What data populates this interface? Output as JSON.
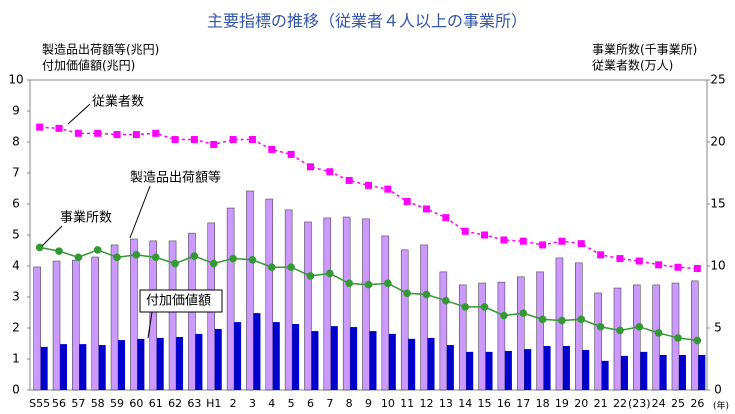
{
  "chart_data": {
    "type": "bar_line",
    "title": "主要指標の推移（従業者４人以上の事業所）",
    "y_label": [
      "製造品出荷額等(兆円)",
      "付加価値額(兆円)"
    ],
    "y2_label": [
      "事業所数(千事業所)",
      "従業者数(万人)"
    ],
    "x_label": "(年)",
    "categories": [
      "S55",
      "56",
      "57",
      "58",
      "59",
      "60",
      "61",
      "62",
      "63",
      "H1",
      "2",
      "3",
      "4",
      "5",
      "6",
      "7",
      "8",
      "9",
      "10",
      "11",
      "12",
      "13",
      "14",
      "15",
      "16",
      "17",
      "18",
      "19",
      "20",
      "21",
      "22",
      "(23)",
      "24",
      "25",
      "26"
    ],
    "ylim": [
      0,
      10
    ],
    "yticks": [
      0,
      1,
      2,
      3,
      4,
      5,
      6,
      7,
      8,
      9,
      10
    ],
    "y2lim": [
      0,
      25
    ],
    "y2ticks": [
      0,
      5,
      10,
      15,
      20,
      25
    ],
    "grid": false,
    "series": [
      {
        "name": "製造品出荷額等",
        "kind": "bar",
        "color": "#cc99ff",
        "values": [
          3.97,
          4.16,
          4.19,
          4.29,
          4.68,
          4.87,
          4.81,
          4.81,
          5.06,
          5.39,
          5.87,
          6.42,
          6.16,
          5.81,
          5.42,
          5.55,
          5.58,
          5.52,
          4.97,
          4.52,
          4.68,
          3.81,
          3.39,
          3.45,
          3.48,
          3.65,
          3.81,
          4.26,
          4.1,
          3.13,
          3.29,
          3.39,
          3.39,
          3.45,
          3.52
        ]
      },
      {
        "name": "付加価値額",
        "kind": "bar",
        "color": "#0000cc",
        "values": [
          1.39,
          1.48,
          1.48,
          1.45,
          1.61,
          1.65,
          1.68,
          1.71,
          1.81,
          1.97,
          2.19,
          2.48,
          2.19,
          2.13,
          1.9,
          2.06,
          2.03,
          1.9,
          1.81,
          1.65,
          1.68,
          1.45,
          1.23,
          1.23,
          1.26,
          1.32,
          1.42,
          1.42,
          1.29,
          0.94,
          1.1,
          1.23,
          1.13,
          1.13,
          1.13
        ]
      },
      {
        "name": "従業者数",
        "kind": "line",
        "axis": "y2",
        "color": "#ff00ff",
        "values": [
          21.2,
          21.1,
          20.7,
          20.7,
          20.6,
          20.6,
          20.7,
          20.2,
          20.2,
          19.8,
          20.2,
          20.2,
          19.4,
          19.0,
          18.0,
          17.6,
          16.9,
          16.5,
          16.2,
          15.2,
          14.6,
          13.9,
          12.8,
          12.5,
          12.1,
          12.0,
          11.7,
          12.0,
          11.8,
          10.9,
          10.6,
          10.4,
          10.1,
          9.9,
          9.8
        ]
      },
      {
        "name": "事業所数",
        "kind": "line",
        "axis": "y2",
        "color": "#339933",
        "values": [
          11.5,
          11.2,
          10.7,
          11.3,
          10.7,
          10.9,
          10.7,
          10.2,
          10.8,
          10.2,
          10.6,
          10.5,
          9.9,
          9.9,
          9.2,
          9.4,
          8.6,
          8.5,
          8.6,
          7.8,
          7.7,
          7.2,
          6.7,
          6.7,
          6.0,
          6.2,
          5.7,
          5.6,
          5.7,
          5.1,
          4.8,
          5.1,
          4.6,
          4.2,
          4.0
        ]
      }
    ]
  }
}
